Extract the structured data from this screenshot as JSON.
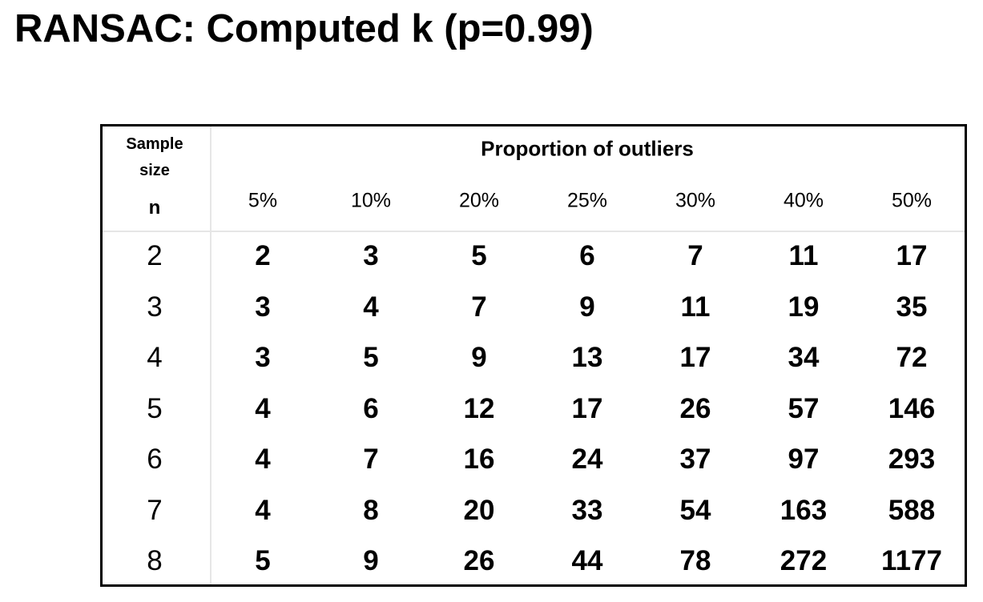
{
  "title": "RANSAC: Computed k (p=0.99)",
  "table": {
    "corner_label": "Sample size",
    "corner_symbol": "n",
    "column_group": "Proportion of outliers",
    "columns": [
      "5%",
      "10%",
      "20%",
      "25%",
      "30%",
      "40%",
      "50%"
    ],
    "rows": [
      [
        2,
        2,
        3,
        5,
        6,
        7,
        11,
        17
      ],
      [
        3,
        3,
        4,
        7,
        9,
        11,
        19,
        35
      ],
      [
        4,
        3,
        5,
        9,
        13,
        17,
        34,
        72
      ],
      [
        5,
        4,
        6,
        12,
        17,
        26,
        57,
        146
      ],
      [
        6,
        4,
        7,
        16,
        24,
        37,
        97,
        293
      ],
      [
        7,
        4,
        8,
        20,
        33,
        54,
        163,
        588
      ],
      [
        8,
        5,
        9,
        26,
        44,
        78,
        272,
        1177
      ]
    ]
  }
}
